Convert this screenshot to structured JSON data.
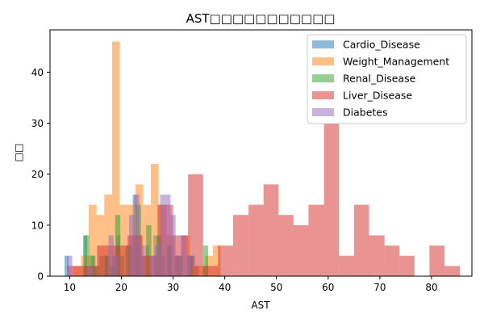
{
  "chart_data": {
    "type": "histogram",
    "title": "AST□□□□□□□□□□□",
    "xlabel": "AST",
    "ylabel": "□□",
    "xlim": [
      6.2,
      87.8
    ],
    "ylim": [
      0,
      48.3
    ],
    "xticks": [
      10,
      20,
      30,
      40,
      50,
      60,
      70,
      80
    ],
    "yticks": [
      0,
      10,
      20,
      30,
      40
    ],
    "grid": false,
    "legend_position": "upper right",
    "bar_opacity": 0.5,
    "series": [
      {
        "name": "Cardio_Disease",
        "color": "#1f77b4",
        "bins": [
          {
            "x0": 9.0,
            "x1": 9.8,
            "y": 4
          },
          {
            "x0": 12.6,
            "x1": 13.4,
            "y": 8
          },
          {
            "x0": 14.2,
            "x1": 15.0,
            "y": 4
          },
          {
            "x0": 15.8,
            "x1": 16.6,
            "y": 4
          },
          {
            "x0": 16.6,
            "x1": 17.4,
            "y": 4
          },
          {
            "x0": 18.2,
            "x1": 19.0,
            "y": 4
          },
          {
            "x0": 19.0,
            "x1": 19.8,
            "y": 8
          },
          {
            "x0": 19.8,
            "x1": 20.6,
            "y": 4
          },
          {
            "x0": 21.4,
            "x1": 22.2,
            "y": 6
          },
          {
            "x0": 22.2,
            "x1": 23.0,
            "y": 16
          },
          {
            "x0": 23.8,
            "x1": 24.6,
            "y": 4
          },
          {
            "x0": 24.6,
            "x1": 25.4,
            "y": 6
          },
          {
            "x0": 26.2,
            "x1": 27.0,
            "y": 8
          },
          {
            "x0": 27.8,
            "x1": 28.6,
            "y": 4
          },
          {
            "x0": 30.2,
            "x1": 31.0,
            "y": 4
          },
          {
            "x0": 33.4,
            "x1": 34.2,
            "y": 4
          },
          {
            "x0": 34.2,
            "x1": 35.0,
            "y": 2
          }
        ]
      },
      {
        "name": "Weight_Management",
        "color": "#ff7f0e",
        "bins": [
          {
            "x0": 10.6,
            "x1": 12.2,
            "y": 2
          },
          {
            "x0": 12.2,
            "x1": 13.7,
            "y": 4
          },
          {
            "x0": 13.7,
            "x1": 15.2,
            "y": 14
          },
          {
            "x0": 15.2,
            "x1": 16.7,
            "y": 12
          },
          {
            "x0": 16.7,
            "x1": 18.2,
            "y": 16
          },
          {
            "x0": 18.2,
            "x1": 19.7,
            "y": 46
          },
          {
            "x0": 19.7,
            "x1": 21.2,
            "y": 14
          },
          {
            "x0": 21.2,
            "x1": 22.7,
            "y": 14
          },
          {
            "x0": 22.7,
            "x1": 24.2,
            "y": 18
          },
          {
            "x0": 24.2,
            "x1": 25.7,
            "y": 14
          },
          {
            "x0": 25.7,
            "x1": 27.2,
            "y": 22
          },
          {
            "x0": 27.2,
            "x1": 28.7,
            "y": 14
          },
          {
            "x0": 28.7,
            "x1": 30.2,
            "y": 8
          },
          {
            "x0": 30.2,
            "x1": 31.7,
            "y": 4
          },
          {
            "x0": 31.7,
            "x1": 33.2,
            "y": 8
          },
          {
            "x0": 33.2,
            "x1": 34.7,
            "y": 2
          },
          {
            "x0": 34.7,
            "x1": 36.2,
            "y": 2
          },
          {
            "x0": 36.2,
            "x1": 37.7,
            "y": 4
          },
          {
            "x0": 37.7,
            "x1": 39.2,
            "y": 6
          }
        ]
      },
      {
        "name": "Renal_Disease",
        "color": "#2ca02c",
        "bins": [
          {
            "x0": 12.8,
            "x1": 13.8,
            "y": 8
          },
          {
            "x0": 13.8,
            "x1": 14.8,
            "y": 4
          },
          {
            "x0": 14.8,
            "x1": 15.8,
            "y": 2
          },
          {
            "x0": 16.8,
            "x1": 17.8,
            "y": 4
          },
          {
            "x0": 17.8,
            "x1": 18.8,
            "y": 2
          },
          {
            "x0": 18.8,
            "x1": 19.8,
            "y": 12
          },
          {
            "x0": 20.8,
            "x1": 21.8,
            "y": 6
          },
          {
            "x0": 22.8,
            "x1": 23.8,
            "y": 14
          },
          {
            "x0": 24.8,
            "x1": 25.8,
            "y": 10
          },
          {
            "x0": 26.8,
            "x1": 27.8,
            "y": 8
          },
          {
            "x0": 28.8,
            "x1": 29.8,
            "y": 6
          },
          {
            "x0": 30.8,
            "x1": 31.8,
            "y": 4
          },
          {
            "x0": 32.8,
            "x1": 33.8,
            "y": 4
          },
          {
            "x0": 35.8,
            "x1": 36.8,
            "y": 6
          }
        ]
      },
      {
        "name": "Liver_Disease",
        "color": "#d62728",
        "bins": [
          {
            "x0": 9.5,
            "x1": 12.4,
            "y": 2
          },
          {
            "x0": 12.4,
            "x1": 15.3,
            "y": 2
          },
          {
            "x0": 15.3,
            "x1": 18.3,
            "y": 6
          },
          {
            "x0": 18.3,
            "x1": 21.2,
            "y": 6
          },
          {
            "x0": 21.2,
            "x1": 24.1,
            "y": 8
          },
          {
            "x0": 24.1,
            "x1": 27.0,
            "y": 4
          },
          {
            "x0": 27.0,
            "x1": 30.0,
            "y": 14
          },
          {
            "x0": 30.0,
            "x1": 32.9,
            "y": 8
          },
          {
            "x0": 32.9,
            "x1": 35.8,
            "y": 20
          },
          {
            "x0": 35.8,
            "x1": 38.7,
            "y": 2
          },
          {
            "x0": 38.7,
            "x1": 41.6,
            "y": 6
          },
          {
            "x0": 41.6,
            "x1": 44.6,
            "y": 12
          },
          {
            "x0": 44.6,
            "x1": 47.5,
            "y": 14
          },
          {
            "x0": 47.5,
            "x1": 50.4,
            "y": 18
          },
          {
            "x0": 50.4,
            "x1": 53.3,
            "y": 12
          },
          {
            "x0": 53.3,
            "x1": 56.2,
            "y": 10
          },
          {
            "x0": 56.2,
            "x1": 59.2,
            "y": 14
          },
          {
            "x0": 59.2,
            "x1": 62.1,
            "y": 30
          },
          {
            "x0": 62.1,
            "x1": 65.0,
            "y": 4
          },
          {
            "x0": 65.0,
            "x1": 67.9,
            "y": 14
          },
          {
            "x0": 67.9,
            "x1": 70.9,
            "y": 8
          },
          {
            "x0": 70.9,
            "x1": 73.8,
            "y": 6
          },
          {
            "x0": 73.8,
            "x1": 76.7,
            "y": 4
          },
          {
            "x0": 79.6,
            "x1": 82.5,
            "y": 6
          },
          {
            "x0": 82.5,
            "x1": 85.5,
            "y": 2
          }
        ]
      },
      {
        "name": "Diabetes",
        "color": "#9467bd",
        "bins": [
          {
            "x0": 9.5,
            "x1": 10.5,
            "y": 4
          },
          {
            "x0": 13.5,
            "x1": 14.5,
            "y": 2
          },
          {
            "x0": 17.5,
            "x1": 18.5,
            "y": 8
          },
          {
            "x0": 18.5,
            "x1": 19.5,
            "y": 4
          },
          {
            "x0": 21.5,
            "x1": 22.5,
            "y": 12
          },
          {
            "x0": 22.5,
            "x1": 23.5,
            "y": 16
          },
          {
            "x0": 23.5,
            "x1": 24.5,
            "y": 6
          },
          {
            "x0": 25.5,
            "x1": 26.5,
            "y": 4
          },
          {
            "x0": 26.5,
            "x1": 27.5,
            "y": 6
          },
          {
            "x0": 27.5,
            "x1": 28.5,
            "y": 16
          },
          {
            "x0": 28.5,
            "x1": 29.5,
            "y": 16
          },
          {
            "x0": 29.5,
            "x1": 30.5,
            "y": 12
          },
          {
            "x0": 30.5,
            "x1": 31.5,
            "y": 4
          },
          {
            "x0": 31.5,
            "x1": 32.5,
            "y": 8
          },
          {
            "x0": 32.5,
            "x1": 33.5,
            "y": 4
          }
        ]
      }
    ]
  }
}
